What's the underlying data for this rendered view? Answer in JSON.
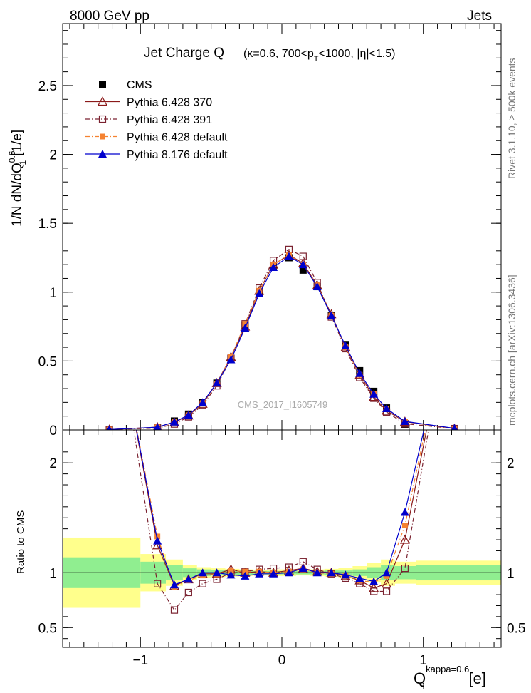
{
  "header": {
    "left": "8000 GeV pp",
    "right": "Jets"
  },
  "side": {
    "rivet": "Rivet 3.1.10, ≥ 500k events",
    "mcplots": "mcplots.cern.ch [arXiv:1306.3436]"
  },
  "watermark": "CMS_2017_I1605749",
  "labels": {
    "ylabel_main": "1/N dN/dQ",
    "ylabel_sup": "0.6",
    "ylabel_sub": "1",
    "ylabel_unit": "[1/e]",
    "ylabel_ratio": "Ratio to CMS",
    "xlabel": "Q",
    "xlabel_sup": "kappa=0.6",
    "xlabel_sub": "1",
    "xlabel_unit": "[e]",
    "title_main": "Jet Charge Q",
    "title_sub_a": "(κ=0.6, 700<p",
    "title_sub_b": "T",
    "title_sub_c": "<1000, |η|<1.5)"
  },
  "chart_data": [
    {
      "type": "line",
      "panel": "main",
      "title": "Jet Charge Q (κ=0.6, 700<pT<1000, |η|<1.5)",
      "xlabel": "Q1^kappa=0.6 [e]",
      "ylabel": "1/N dN/dQ1^0.6 [1/e]",
      "xlim": [
        -1.55,
        1.55
      ],
      "ylim": [
        0,
        2.95
      ],
      "yticks": [
        0,
        0.5,
        1,
        1.5,
        2,
        2.5
      ],
      "ytick_labels": [
        "0",
        "0.5",
        "1",
        "1.5",
        "2",
        "2.5"
      ],
      "legend": "top-left",
      "x": [
        -1.22,
        -0.88,
        -0.76,
        -0.66,
        -0.56,
        -0.46,
        -0.36,
        -0.26,
        -0.16,
        -0.06,
        0.05,
        0.15,
        0.25,
        0.35,
        0.45,
        0.55,
        0.65,
        0.74,
        0.87,
        1.22
      ],
      "series": [
        {
          "name": "CMS",
          "color": "#000000",
          "marker": "filled-square",
          "values": [
            0.005,
            0.015,
            0.065,
            0.115,
            0.2,
            0.34,
            0.52,
            0.76,
            1.0,
            1.19,
            1.25,
            1.16,
            1.04,
            0.83,
            0.62,
            0.43,
            0.28,
            0.16,
            0.04,
            0.005
          ]
        },
        {
          "name": "Pythia 6.428 370",
          "color": "#8b1a1a",
          "marker": "open-triangle",
          "dash": "",
          "values": [
            0.003,
            0.02,
            0.055,
            0.105,
            0.19,
            0.34,
            0.53,
            0.75,
            1.01,
            1.2,
            1.27,
            1.21,
            1.05,
            0.84,
            0.6,
            0.4,
            0.24,
            0.14,
            0.06,
            0.01
          ]
        },
        {
          "name": "Pythia 6.428 391",
          "color": "#7a2230",
          "marker": "open-square",
          "dash": "6 3 1 3",
          "values": [
            0.003,
            0.013,
            0.043,
            0.095,
            0.18,
            0.32,
            0.52,
            0.77,
            1.03,
            1.23,
            1.31,
            1.26,
            1.07,
            0.82,
            0.59,
            0.38,
            0.23,
            0.13,
            0.045,
            0.01
          ]
        },
        {
          "name": "Pythia 6.428 default",
          "color": "#f58231",
          "marker": "filled-square-small",
          "dash": "6 3 1 3",
          "values": [
            0.003,
            0.02,
            0.057,
            0.107,
            0.195,
            0.335,
            0.53,
            0.77,
            1.01,
            1.2,
            1.27,
            1.2,
            1.05,
            0.83,
            0.6,
            0.4,
            0.26,
            0.155,
            0.058,
            0.01
          ]
        },
        {
          "name": "Pythia 8.176 default",
          "color": "#0000cd",
          "marker": "filled-triangle",
          "dash": "",
          "values": [
            0.003,
            0.02,
            0.058,
            0.108,
            0.2,
            0.34,
            0.51,
            0.74,
            0.99,
            1.18,
            1.26,
            1.2,
            1.04,
            0.83,
            0.61,
            0.41,
            0.26,
            0.155,
            0.062,
            0.012
          ]
        }
      ]
    },
    {
      "type": "line",
      "panel": "ratio",
      "ylabel": "Ratio to CMS",
      "xlim": [
        -1.55,
        1.55
      ],
      "ylim": [
        0.32,
        2.3
      ],
      "xticks": [
        -1,
        0,
        1
      ],
      "xtick_labels": [
        "−1",
        "0",
        "1"
      ],
      "yticks": [
        0.5,
        1,
        2
      ],
      "ytick_labels": [
        "0.5",
        "1",
        "2"
      ],
      "x": [
        -0.88,
        -0.76,
        -0.66,
        -0.56,
        -0.46,
        -0.36,
        -0.26,
        -0.16,
        -0.06,
        0.05,
        0.15,
        0.25,
        0.35,
        0.45,
        0.55,
        0.65,
        0.74,
        0.87
      ],
      "band_edges": [
        -1.55,
        -1.0,
        -0.82,
        -0.7,
        -0.6,
        -0.5,
        -0.4,
        -0.3,
        -0.2,
        -0.1,
        0.0,
        0.1,
        0.2,
        0.3,
        0.4,
        0.5,
        0.6,
        0.7,
        0.8,
        0.95,
        1.55
      ],
      "band_inner": [
        0.14,
        0.1,
        0.07,
        0.04,
        0.03,
        0.025,
        0.02,
        0.02,
        0.015,
        0.015,
        0.015,
        0.015,
        0.015,
        0.02,
        0.02,
        0.03,
        0.05,
        0.07,
        0.06,
        0.07
      ],
      "band_outer": [
        0.32,
        0.17,
        0.12,
        0.07,
        0.05,
        0.04,
        0.035,
        0.03,
        0.025,
        0.03,
        0.03,
        0.025,
        0.03,
        0.035,
        0.045,
        0.06,
        0.09,
        0.12,
        0.1,
        0.11
      ],
      "series": [
        {
          "name": "Pythia 6.428 370",
          "color": "#8b1a1a",
          "marker": "open-triangle",
          "dash": "",
          "values": [
            1.25,
            0.88,
            0.94,
            0.99,
            0.99,
            1.03,
            1.0,
            1.01,
            1.0,
            1.02,
            1.04,
            1.01,
            1.0,
            0.97,
            0.93,
            0.86,
            0.9,
            1.3
          ]
        },
        {
          "name": "Pythia 6.428 391",
          "color": "#7a2230",
          "marker": "open-square",
          "dash": "6 3 1 3",
          "values": [
            0.9,
            0.66,
            0.82,
            0.9,
            0.94,
            1.0,
            1.01,
            1.03,
            1.04,
            1.05,
            1.1,
            1.03,
            0.99,
            0.95,
            0.9,
            0.83,
            0.83,
            1.04
          ]
        },
        {
          "name": "Pythia 6.428 default",
          "color": "#f58231",
          "marker": "filled-square-small",
          "dash": "6 3 1 3",
          "values": [
            1.33,
            0.87,
            0.93,
            0.975,
            0.985,
            1.02,
            1.01,
            1.01,
            1.0,
            1.01,
            1.03,
            1.0,
            0.99,
            0.97,
            0.93,
            0.91,
            0.97,
            1.43
          ]
        },
        {
          "name": "Pythia 8.176 default",
          "color": "#0000cd",
          "marker": "filled-triangle",
          "dash": "",
          "values": [
            1.29,
            0.89,
            0.94,
            1.0,
            1.0,
            0.98,
            0.97,
            0.99,
            0.99,
            1.0,
            1.04,
            1.0,
            1.0,
            0.98,
            0.95,
            0.92,
            1.0,
            1.55
          ]
        }
      ]
    }
  ]
}
